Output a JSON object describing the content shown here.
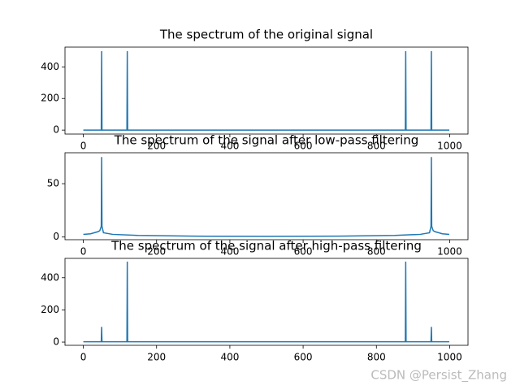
{
  "chart_data": [
    {
      "type": "line",
      "title": "The spectrum of the original signal",
      "x": [
        0,
        49,
        50,
        51,
        119,
        120,
        121,
        879,
        880,
        881,
        949,
        950,
        951,
        999
      ],
      "values": [
        0,
        0,
        500,
        0,
        0,
        500,
        0,
        0,
        500,
        0,
        0,
        500,
        0,
        0
      ],
      "color": "#1f77b4",
      "xlim": [
        -50,
        1050
      ],
      "ylim": [
        -25,
        525
      ],
      "xticks": [
        0,
        200,
        400,
        600,
        800,
        1000
      ],
      "yticks": [
        0,
        200,
        400
      ],
      "grid": false
    },
    {
      "type": "line",
      "title": "The spectrum of the signal after low-pass filtering",
      "x": [
        0,
        20,
        40,
        45,
        49,
        50,
        51,
        55,
        80,
        150,
        300,
        500,
        700,
        850,
        920,
        945,
        949,
        950,
        951,
        955,
        960,
        980,
        999
      ],
      "values": [
        2.5,
        3,
        5,
        6,
        10,
        75,
        10,
        4,
        2.5,
        1.5,
        0.8,
        0.6,
        0.8,
        1.5,
        2.5,
        4,
        10,
        75,
        10,
        6,
        5,
        3,
        2.5
      ],
      "color": "#1f77b4",
      "xlim": [
        -50,
        1050
      ],
      "ylim": [
        -2.5,
        79
      ],
      "xticks": [
        0,
        200,
        400,
        600,
        800,
        1000
      ],
      "yticks": [
        0,
        50
      ],
      "grid": false
    },
    {
      "type": "line",
      "title": "The spectrum of the signal after high-pass filtering",
      "x": [
        0,
        49,
        50,
        51,
        119,
        120,
        121,
        879,
        880,
        881,
        949,
        950,
        951,
        999
      ],
      "values": [
        2,
        2,
        95,
        2,
        2,
        500,
        2,
        2,
        500,
        2,
        2,
        95,
        2,
        2
      ],
      "color": "#1f77b4",
      "xlim": [
        -50,
        1050
      ],
      "ylim": [
        -20,
        520
      ],
      "xticks": [
        0,
        200,
        400,
        600,
        800,
        1000
      ],
      "yticks": [
        0,
        200,
        400
      ],
      "grid": false
    }
  ],
  "watermark": "CSDN @Persist_Zhang"
}
